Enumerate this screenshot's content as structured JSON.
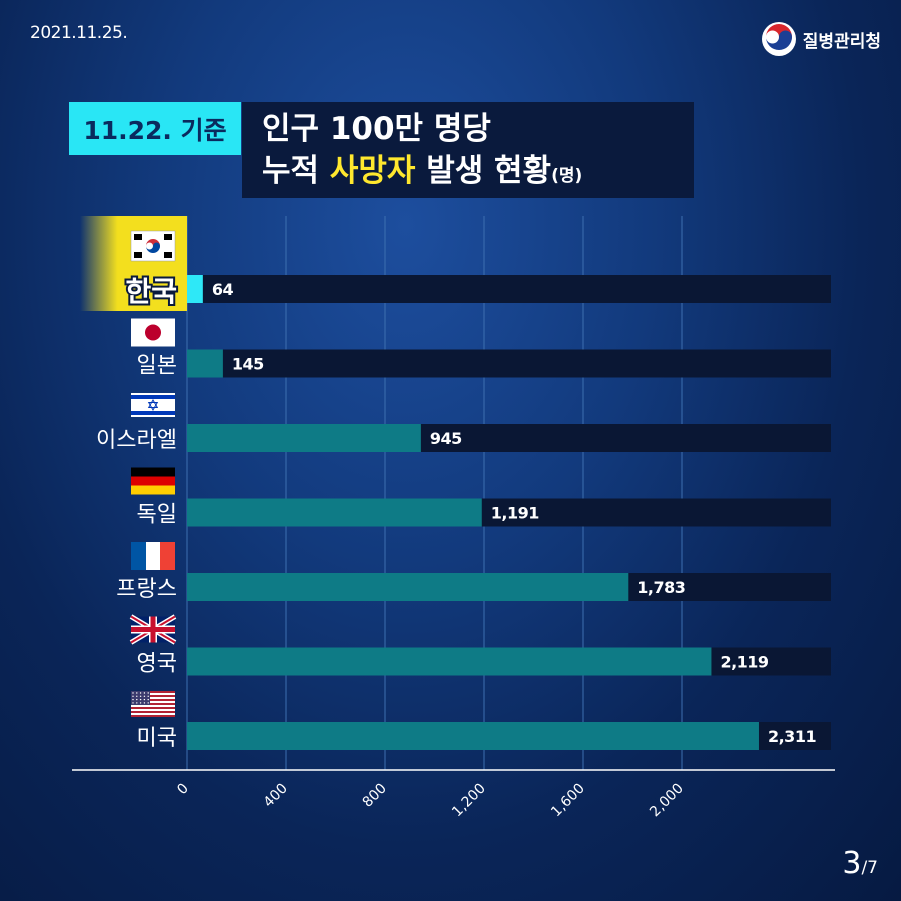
{
  "header": {
    "date": "2021.11.25.",
    "org_name": "질병관리청",
    "tag": "11.22. 기준",
    "title_line1": "인구 100만 명당",
    "title_line2_a": "누적 ",
    "title_line2_highlight": "사망자",
    "title_line2_b": " 발생 현황",
    "title_unit": "(명)"
  },
  "chart_data": {
    "type": "bar",
    "orientation": "horizontal",
    "categories": [
      "한국",
      "일본",
      "이스라엘",
      "독일",
      "프랑스",
      "영국",
      "미국"
    ],
    "values": [
      64,
      145,
      945,
      1191,
      1783,
      2119,
      2311
    ],
    "value_labels": [
      "64",
      "145",
      "945",
      "1,191",
      "1,783",
      "2,119",
      "2,311"
    ],
    "flags": [
      "korea-flag",
      "japan-flag",
      "israel-flag",
      "germany-flag",
      "france-flag",
      "uk-flag",
      "usa-flag"
    ],
    "highlight_index": 0,
    "xlim": [
      0,
      2400
    ],
    "xticks": [
      0,
      400,
      800,
      1200,
      1600,
      2000
    ],
    "xtick_labels": [
      "0",
      "400",
      "800",
      "1,200",
      "1,600",
      "2,000"
    ],
    "grid": true,
    "colors": {
      "bar": "#0e7b86",
      "highlight_bar": "#2ee8f7",
      "track": "#0a1734",
      "highlight_label_bg": "#f3df1e",
      "gridline": "#3d6fb0"
    }
  },
  "footer": {
    "page_current": "3",
    "page_total": "/7"
  }
}
